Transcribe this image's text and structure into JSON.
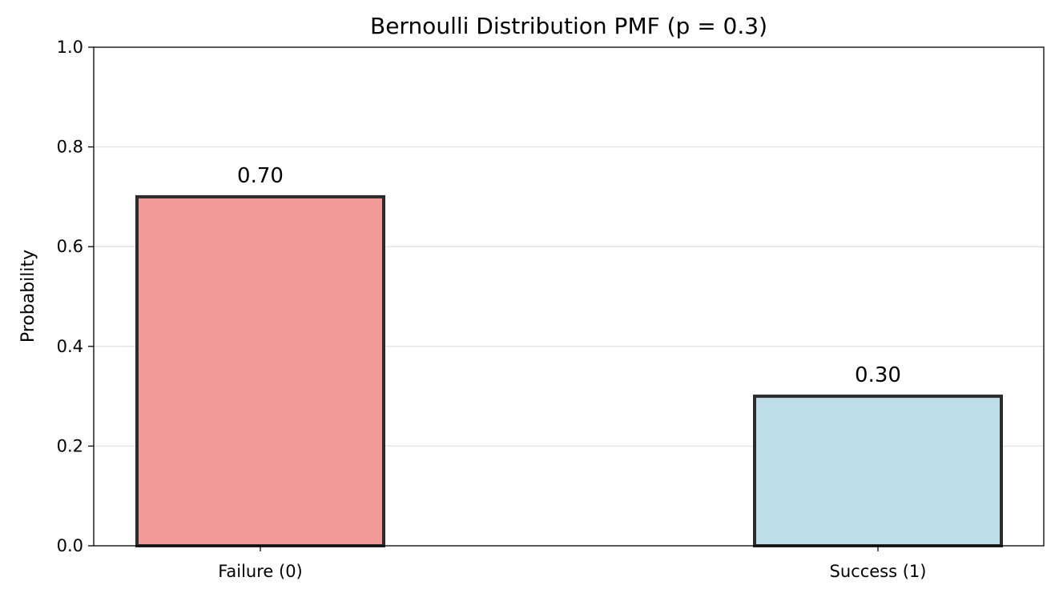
{
  "chart_data": {
    "type": "bar",
    "title": "Bernoulli Distribution PMF (p = 0.3)",
    "xlabel": "",
    "ylabel": "Probability",
    "categories": [
      "Failure (0)",
      "Success (1)"
    ],
    "values": [
      0.7,
      0.3
    ],
    "data_labels": [
      "0.70",
      "0.30"
    ],
    "bar_colors": [
      "#f29a99",
      "#bddfea"
    ],
    "edge_color": "#2b2b2b",
    "ylim": [
      0,
      1.0
    ],
    "yticks": [
      0.0,
      0.2,
      0.4,
      0.6,
      0.8,
      1.0
    ],
    "ytick_labels": [
      "0.0",
      "0.2",
      "0.4",
      "0.6",
      "0.8",
      "1.0"
    ],
    "grid": "horizontal"
  }
}
